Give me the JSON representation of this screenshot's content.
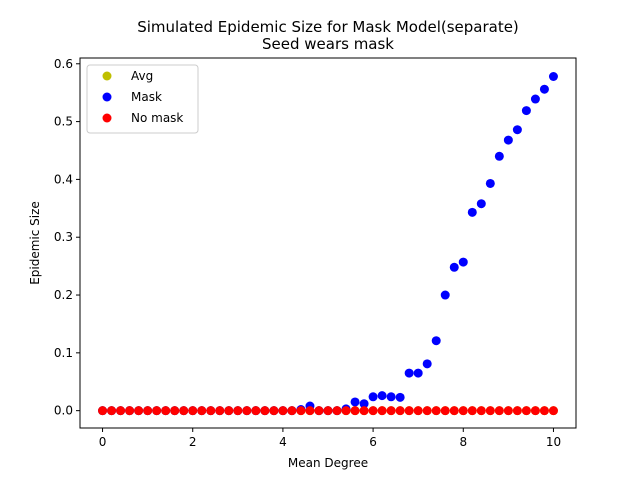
{
  "chart_data": {
    "type": "scatter",
    "title": "Simulated Epidemic Size for Mask Model(separate)",
    "subtitle": "Seed wears mask",
    "xlabel": "Mean Degree",
    "ylabel": "Epidemic Size",
    "xlim": [
      -0.5,
      10.5
    ],
    "ylim": [
      -0.03,
      0.61
    ],
    "xticks": [
      0,
      2,
      4,
      6,
      8,
      10
    ],
    "xtick_labels": [
      "0",
      "2",
      "4",
      "6",
      "8",
      "10"
    ],
    "yticks": [
      0.0,
      0.1,
      0.2,
      0.3,
      0.4,
      0.5,
      0.6
    ],
    "ytick_labels": [
      "0.0",
      "0.1",
      "0.2",
      "0.3",
      "0.4",
      "0.5",
      "0.6"
    ],
    "grid": false,
    "legend_position": "top-left",
    "x": [
      0.0,
      0.2,
      0.4,
      0.6,
      0.8,
      1.0,
      1.2,
      1.4,
      1.6,
      1.8,
      2.0,
      2.2,
      2.4,
      2.6,
      2.8,
      3.0,
      3.2,
      3.4,
      3.6,
      3.8,
      4.0,
      4.2,
      4.4,
      4.6,
      4.8,
      5.0,
      5.2,
      5.4,
      5.6,
      5.8,
      6.0,
      6.2,
      6.4,
      6.6,
      6.8,
      7.0,
      7.2,
      7.4,
      7.6,
      7.8,
      8.0,
      8.2,
      8.4,
      8.6,
      8.8,
      9.0,
      9.2,
      9.4,
      9.6,
      9.8,
      10.0
    ],
    "series": [
      {
        "name": "Avg",
        "color": "#bfbf00",
        "values": [
          0,
          0,
          0,
          0,
          0,
          0,
          0,
          0,
          0,
          0,
          0,
          0,
          0,
          0,
          0,
          0,
          0,
          0,
          0,
          0,
          0,
          0,
          0,
          0,
          0,
          0,
          0,
          0,
          0,
          0,
          0,
          0,
          0,
          0,
          0,
          0,
          0,
          0,
          0,
          0,
          0,
          0,
          0,
          0,
          0,
          0,
          0,
          0,
          0,
          0,
          0
        ]
      },
      {
        "name": "Mask",
        "color": "#0000ff",
        "values": [
          0,
          0,
          0,
          0,
          0,
          0,
          0,
          0,
          0,
          0,
          0,
          0,
          0,
          0,
          0,
          0,
          0,
          0,
          0,
          0,
          0,
          0,
          0.002,
          0.008,
          0,
          0,
          0,
          0.003,
          0.015,
          0.012,
          0.024,
          0.026,
          0.024,
          0.023,
          0.065,
          0.065,
          0.081,
          0.121,
          0.2,
          0.248,
          0.257,
          0.343,
          0.358,
          0.393,
          0.44,
          0.468,
          0.486,
          0.519,
          0.539,
          0.556,
          0.578
        ]
      },
      {
        "name": "No mask",
        "color": "#ff0000",
        "values": [
          0,
          0,
          0,
          0,
          0,
          0,
          0,
          0,
          0,
          0,
          0,
          0,
          0,
          0,
          0,
          0,
          0,
          0,
          0,
          0,
          0,
          0,
          0,
          0,
          0,
          0,
          0,
          0,
          0,
          0,
          0,
          0,
          0,
          0,
          0,
          0,
          0,
          0,
          0,
          0,
          0,
          0,
          0,
          0,
          0,
          0,
          0,
          0,
          0,
          0,
          0
        ]
      }
    ]
  }
}
